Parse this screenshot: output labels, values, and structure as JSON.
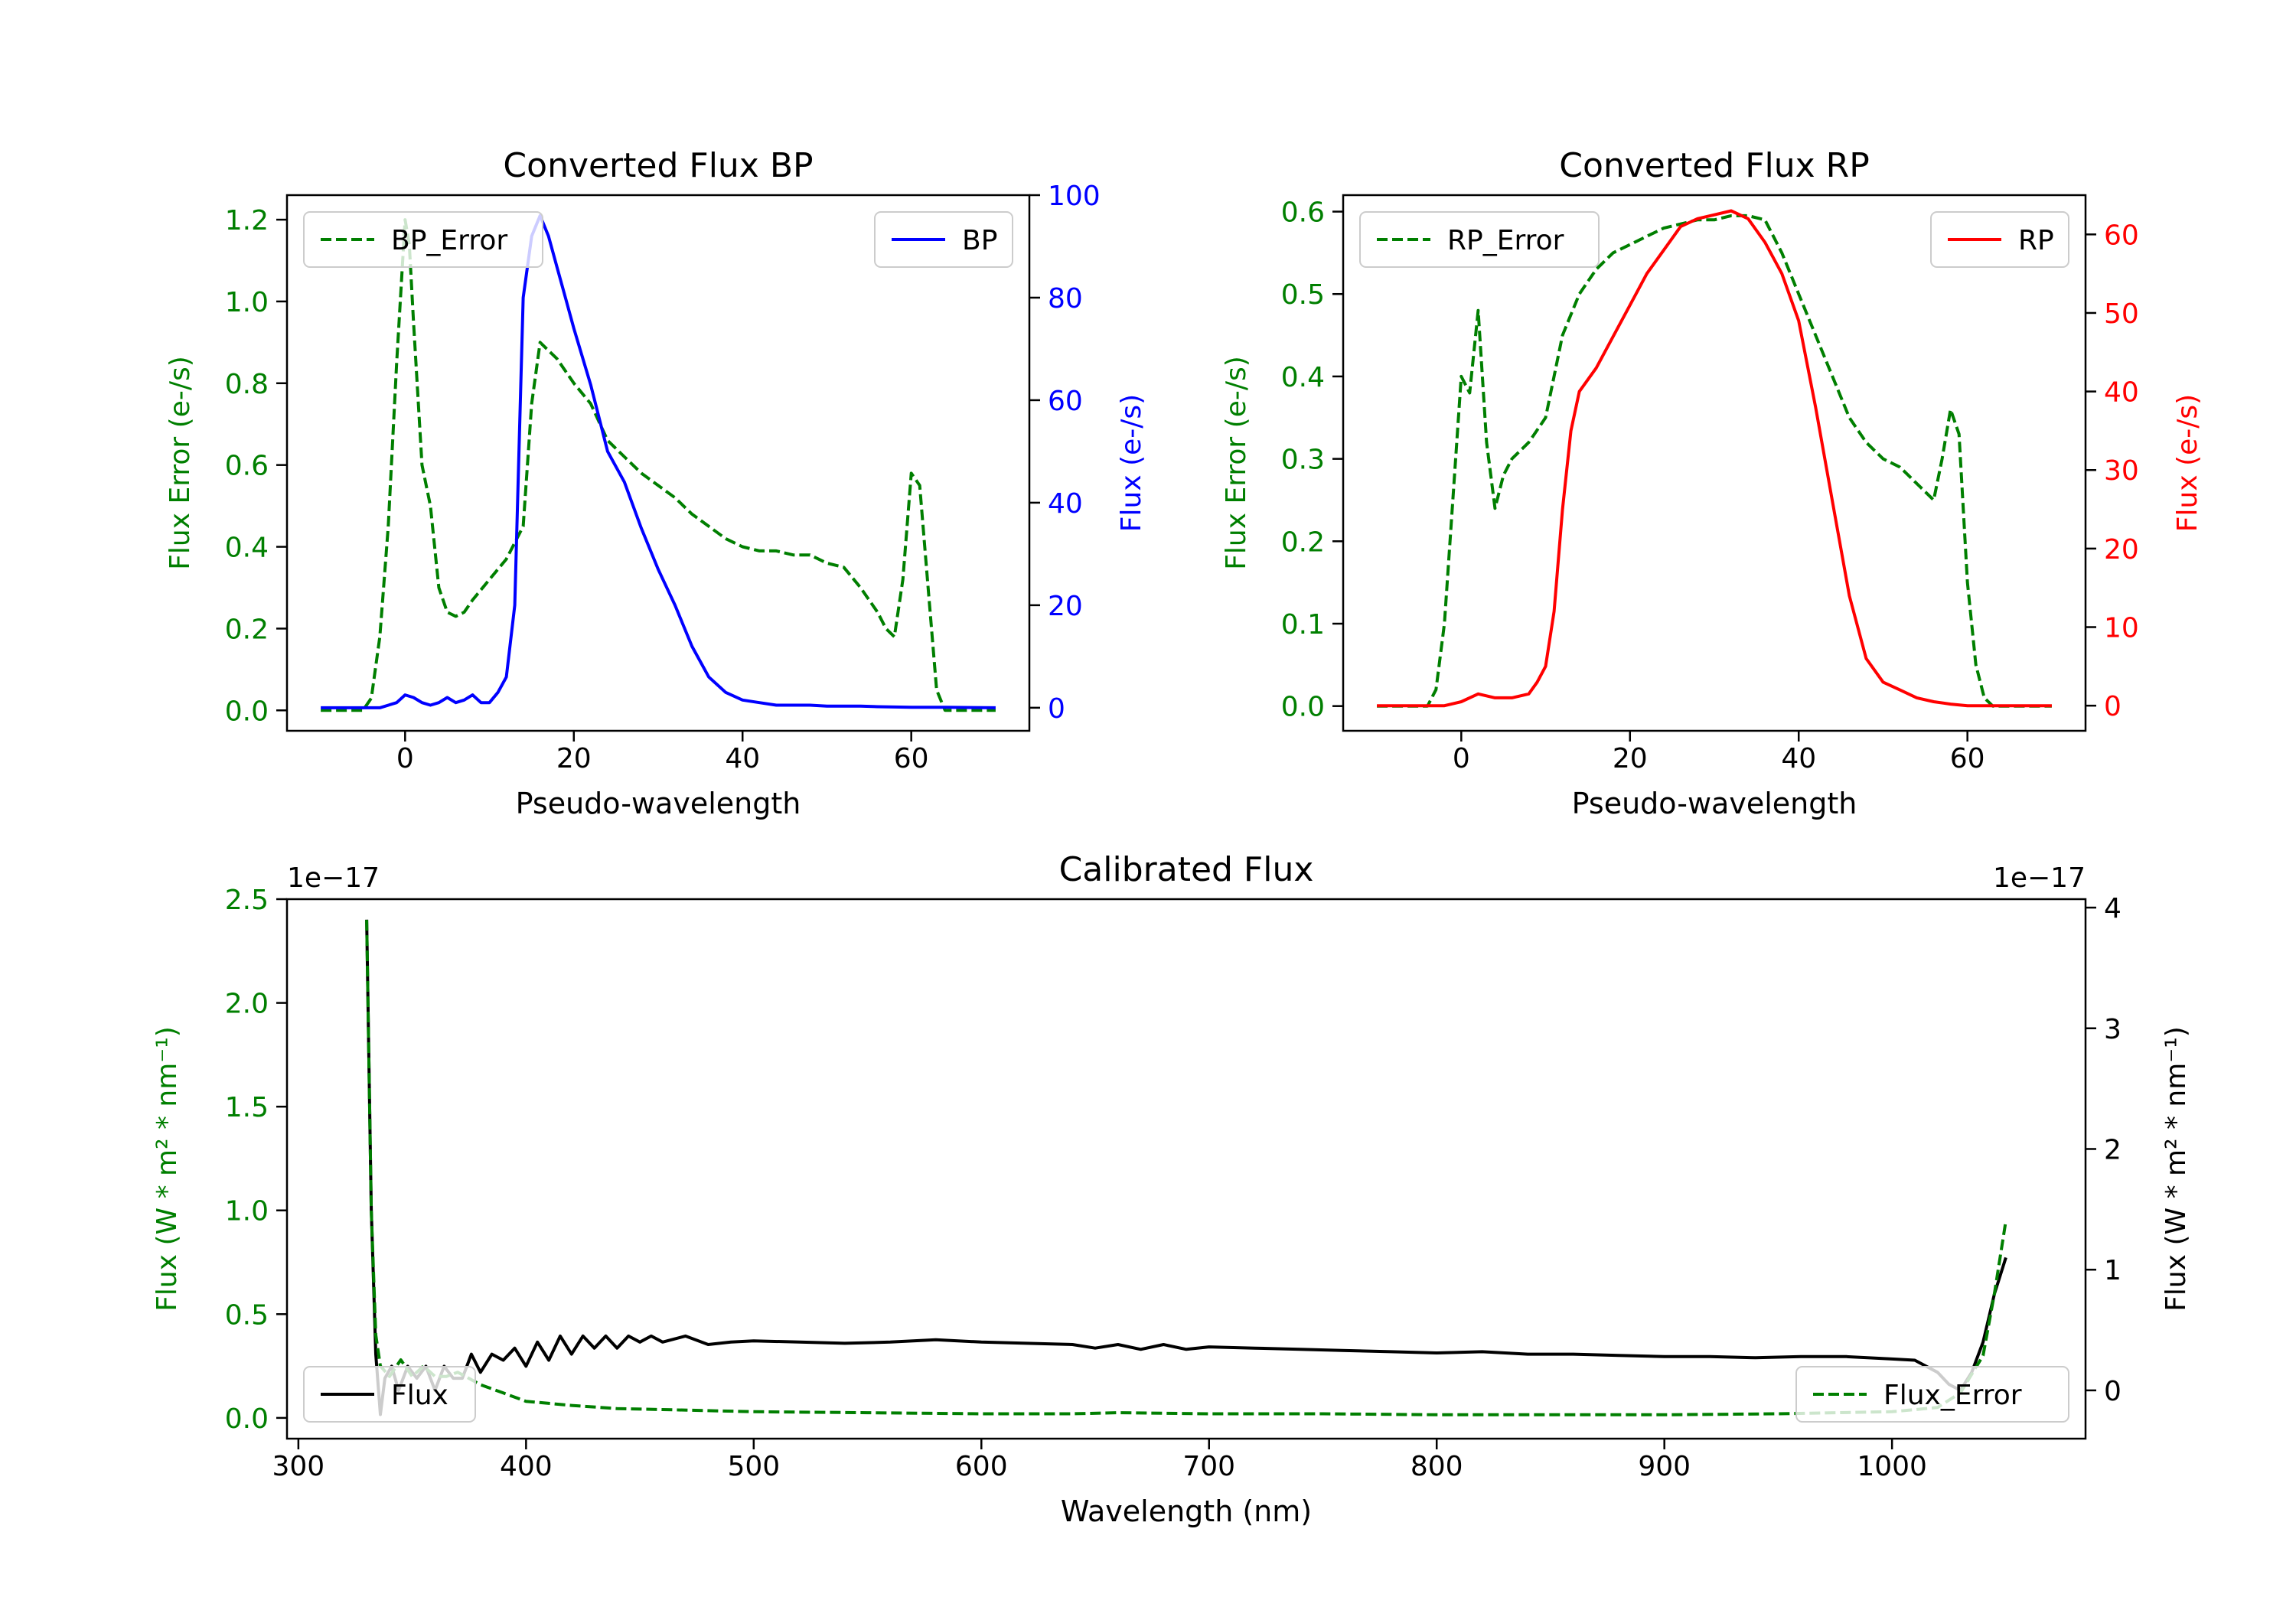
{
  "colors": {
    "green": "#007f00",
    "blue": "#0000ff",
    "red": "#ff0000",
    "black": "#000000",
    "frame": "#000000"
  },
  "chart_data": [
    {
      "id": "bp",
      "type": "line",
      "title": "Converted Flux BP",
      "xlabel": "Pseudo-wavelength",
      "xlim": [
        -14,
        74
      ],
      "xticks": [
        0,
        20,
        40,
        60
      ],
      "left_axis": {
        "label": "Flux Error (e-/s)",
        "color": "#007f00",
        "ylim": [
          -0.05,
          1.26
        ],
        "ticks": [
          0.0,
          0.2,
          0.4,
          0.6,
          0.8,
          1.0,
          1.2
        ],
        "tick_labels": [
          "0.0",
          "0.2",
          "0.4",
          "0.6",
          "0.8",
          "1.0",
          "1.2"
        ]
      },
      "right_axis": {
        "label": "Flux (e-/s)",
        "color": "#0000ff",
        "ylim": [
          -4.5,
          100
        ],
        "ticks": [
          0,
          20,
          40,
          60,
          80,
          100
        ],
        "tick_labels": [
          "0",
          "20",
          "40",
          "60",
          "80",
          "100"
        ]
      },
      "series": [
        {
          "name": "BP_Error",
          "axis": "left",
          "color": "#007f00",
          "dashed": true,
          "x": [
            -10,
            -5,
            -4,
            -3,
            -2,
            -1,
            0,
            0.5,
            1,
            2,
            3,
            4,
            5,
            6,
            7,
            8,
            10,
            12,
            14,
            15,
            16,
            17,
            18,
            20,
            22,
            24,
            26,
            28,
            30,
            32,
            34,
            36,
            38,
            40,
            42,
            44,
            46,
            48,
            50,
            52,
            54,
            56,
            57,
            58,
            59,
            60,
            61,
            62,
            63,
            64,
            70
          ],
          "values": [
            0,
            0,
            0.03,
            0.18,
            0.45,
            0.85,
            1.2,
            1.14,
            0.95,
            0.6,
            0.5,
            0.3,
            0.24,
            0.23,
            0.24,
            0.27,
            0.32,
            0.37,
            0.45,
            0.75,
            0.9,
            0.88,
            0.86,
            0.8,
            0.75,
            0.66,
            0.62,
            0.58,
            0.55,
            0.52,
            0.48,
            0.45,
            0.42,
            0.4,
            0.39,
            0.39,
            0.38,
            0.38,
            0.36,
            0.35,
            0.3,
            0.24,
            0.2,
            0.18,
            0.32,
            0.58,
            0.55,
            0.3,
            0.05,
            0.0,
            0
          ]
        },
        {
          "name": "BP",
          "axis": "right",
          "color": "#0000ff",
          "dashed": false,
          "x": [
            -10,
            -3,
            -1,
            0,
            1,
            2,
            3,
            4,
            5,
            6,
            7,
            8,
            9,
            10,
            11,
            12,
            13,
            14,
            15,
            16,
            17,
            18,
            19,
            20,
            22,
            24,
            26,
            28,
            30,
            32,
            34,
            36,
            38,
            40,
            42,
            44,
            46,
            48,
            50,
            52,
            54,
            56,
            60,
            64,
            70
          ],
          "values": [
            0,
            0,
            1,
            2.5,
            2,
            1,
            0.5,
            1,
            2,
            1,
            1.5,
            2.5,
            1,
            1,
            3,
            6,
            20,
            80,
            92,
            96,
            92,
            86,
            80,
            74,
            63,
            50,
            44,
            35,
            27,
            20,
            12,
            6,
            3,
            1.5,
            1,
            0.5,
            0.5,
            0.5,
            0.3,
            0.3,
            0.3,
            0.2,
            0.1,
            0.1,
            0
          ]
        }
      ],
      "legend_left": {
        "location": "upper left",
        "label": "BP_Error"
      },
      "legend_right": {
        "location": "upper right",
        "label": "BP"
      }
    },
    {
      "id": "rp",
      "type": "line",
      "title": "Converted Flux RP",
      "xlabel": "Pseudo-wavelength",
      "xlim": [
        -14,
        74
      ],
      "xticks": [
        0,
        20,
        40,
        60
      ],
      "left_axis": {
        "label": "Flux Error (e-/s)",
        "color": "#007f00",
        "ylim": [
          -0.03,
          0.62
        ],
        "ticks": [
          0.0,
          0.1,
          0.2,
          0.3,
          0.4,
          0.5,
          0.6
        ],
        "tick_labels": [
          "0.0",
          "0.1",
          "0.2",
          "0.3",
          "0.4",
          "0.5",
          "0.6"
        ]
      },
      "right_axis": {
        "label": "Flux (e-/s)",
        "color": "#ff0000",
        "ylim": [
          -3.2,
          65
        ],
        "ticks": [
          0,
          10,
          20,
          30,
          40,
          50,
          60
        ],
        "tick_labels": [
          "0",
          "10",
          "20",
          "30",
          "40",
          "50",
          "60"
        ]
      },
      "series": [
        {
          "name": "RP_Error",
          "axis": "left",
          "color": "#007f00",
          "dashed": true,
          "x": [
            -10,
            -4,
            -3,
            -2,
            -1,
            0,
            1,
            2,
            3,
            4,
            5,
            6,
            8,
            10,
            12,
            14,
            16,
            18,
            20,
            22,
            24,
            26,
            28,
            30,
            32,
            34,
            36,
            38,
            40,
            42,
            44,
            46,
            48,
            50,
            52,
            54,
            55,
            56,
            57,
            58,
            59,
            60,
            61,
            62,
            63,
            64,
            70
          ],
          "values": [
            0,
            0,
            0.02,
            0.1,
            0.25,
            0.4,
            0.38,
            0.48,
            0.32,
            0.24,
            0.28,
            0.3,
            0.32,
            0.35,
            0.45,
            0.5,
            0.53,
            0.55,
            0.56,
            0.57,
            0.58,
            0.585,
            0.59,
            0.59,
            0.595,
            0.595,
            0.59,
            0.55,
            0.5,
            0.45,
            0.4,
            0.35,
            0.32,
            0.3,
            0.29,
            0.27,
            0.26,
            0.25,
            0.3,
            0.36,
            0.33,
            0.15,
            0.05,
            0.01,
            0.0,
            0,
            0
          ]
        },
        {
          "name": "RP",
          "axis": "right",
          "color": "#ff0000",
          "dashed": false,
          "x": [
            -10,
            -2,
            0,
            2,
            4,
            6,
            8,
            9,
            10,
            11,
            12,
            13,
            14,
            16,
            18,
            20,
            22,
            24,
            26,
            28,
            30,
            32,
            34,
            36,
            38,
            40,
            42,
            44,
            46,
            48,
            50,
            52,
            54,
            56,
            58,
            60,
            64,
            70
          ],
          "values": [
            0,
            0,
            0.5,
            1.5,
            1,
            1,
            1.5,
            3,
            5,
            12,
            25,
            35,
            40,
            43,
            47,
            51,
            55,
            58,
            61,
            62,
            62.5,
            63,
            62,
            59,
            55,
            49,
            38,
            26,
            14,
            6,
            3,
            2,
            1,
            0.5,
            0.2,
            0,
            0,
            0
          ]
        }
      ],
      "legend_left": {
        "location": "upper left",
        "label": "RP_Error"
      },
      "legend_right": {
        "location": "upper right",
        "label": "RP"
      }
    },
    {
      "id": "cal",
      "type": "line",
      "title": "Calibrated Flux",
      "xlabel": "Wavelength (nm)",
      "xlim": [
        295,
        1085
      ],
      "xticks": [
        300,
        400,
        500,
        600,
        700,
        800,
        900,
        1000
      ],
      "left_axis": {
        "label": "Flux (W * m² * nm⁻¹)",
        "color": "#007f00",
        "offset_text": "1e−17",
        "ylim": [
          -0.1,
          2.5
        ],
        "ticks": [
          0.0,
          0.5,
          1.0,
          1.5,
          2.0,
          2.5
        ],
        "tick_labels": [
          "0.0",
          "0.5",
          "1.0",
          "1.5",
          "2.0",
          "2.5"
        ]
      },
      "right_axis": {
        "label": "Flux (W * m² * nm⁻¹)",
        "color": "#000000",
        "offset_text": "1e−17",
        "ylim": [
          -0.4,
          4.07
        ],
        "ticks": [
          0,
          1,
          2,
          3,
          4
        ],
        "tick_labels": [
          "0",
          "1",
          "2",
          "3",
          "4"
        ]
      },
      "series": [
        {
          "name": "Flux",
          "axis": "right",
          "color": "#000000",
          "dashed": false,
          "x": [
            330,
            332,
            334,
            336,
            338,
            341,
            344,
            348,
            352,
            356,
            360,
            364,
            368,
            372,
            376,
            380,
            385,
            390,
            395,
            400,
            405,
            410,
            415,
            420,
            425,
            430,
            435,
            440,
            445,
            450,
            455,
            460,
            470,
            480,
            490,
            500,
            520,
            540,
            560,
            580,
            600,
            620,
            640,
            650,
            660,
            670,
            680,
            690,
            700,
            720,
            740,
            760,
            780,
            800,
            820,
            840,
            860,
            880,
            900,
            920,
            940,
            960,
            980,
            1000,
            1010,
            1020,
            1025,
            1030,
            1035,
            1040,
            1045,
            1050
          ],
          "values": [
            3.9,
            1.5,
            0.3,
            -0.2,
            0.1,
            0.2,
            0.0,
            0.2,
            0.1,
            0.2,
            0.0,
            0.2,
            0.1,
            0.1,
            0.3,
            0.15,
            0.3,
            0.25,
            0.35,
            0.2,
            0.4,
            0.25,
            0.45,
            0.3,
            0.45,
            0.35,
            0.45,
            0.35,
            0.45,
            0.4,
            0.45,
            0.4,
            0.45,
            0.38,
            0.4,
            0.41,
            0.4,
            0.39,
            0.4,
            0.42,
            0.4,
            0.39,
            0.38,
            0.35,
            0.38,
            0.34,
            0.38,
            0.34,
            0.36,
            0.35,
            0.34,
            0.33,
            0.32,
            0.31,
            0.32,
            0.3,
            0.3,
            0.29,
            0.28,
            0.28,
            0.27,
            0.28,
            0.28,
            0.26,
            0.25,
            0.15,
            0.05,
            0.0,
            0.15,
            0.4,
            0.8,
            1.1
          ]
        },
        {
          "name": "Flux_Error",
          "axis": "left",
          "color": "#007f00",
          "dashed": true,
          "x": [
            330,
            332,
            334,
            336,
            340,
            345,
            350,
            355,
            360,
            365,
            370,
            380,
            390,
            400,
            420,
            440,
            460,
            500,
            550,
            600,
            640,
            660,
            700,
            750,
            800,
            850,
            900,
            950,
            1000,
            1020,
            1030,
            1040,
            1045,
            1050
          ],
          "values": [
            2.4,
            1.0,
            0.4,
            0.25,
            0.2,
            0.28,
            0.2,
            0.25,
            0.2,
            0.2,
            0.22,
            0.16,
            0.12,
            0.08,
            0.06,
            0.045,
            0.04,
            0.03,
            0.025,
            0.02,
            0.02,
            0.025,
            0.02,
            0.02,
            0.015,
            0.015,
            0.015,
            0.02,
            0.03,
            0.05,
            0.12,
            0.3,
            0.6,
            0.95
          ]
        }
      ],
      "legend_left": {
        "location": "lower left",
        "label": "Flux"
      },
      "legend_right": {
        "location": "lower right",
        "label": "Flux_Error"
      }
    }
  ]
}
